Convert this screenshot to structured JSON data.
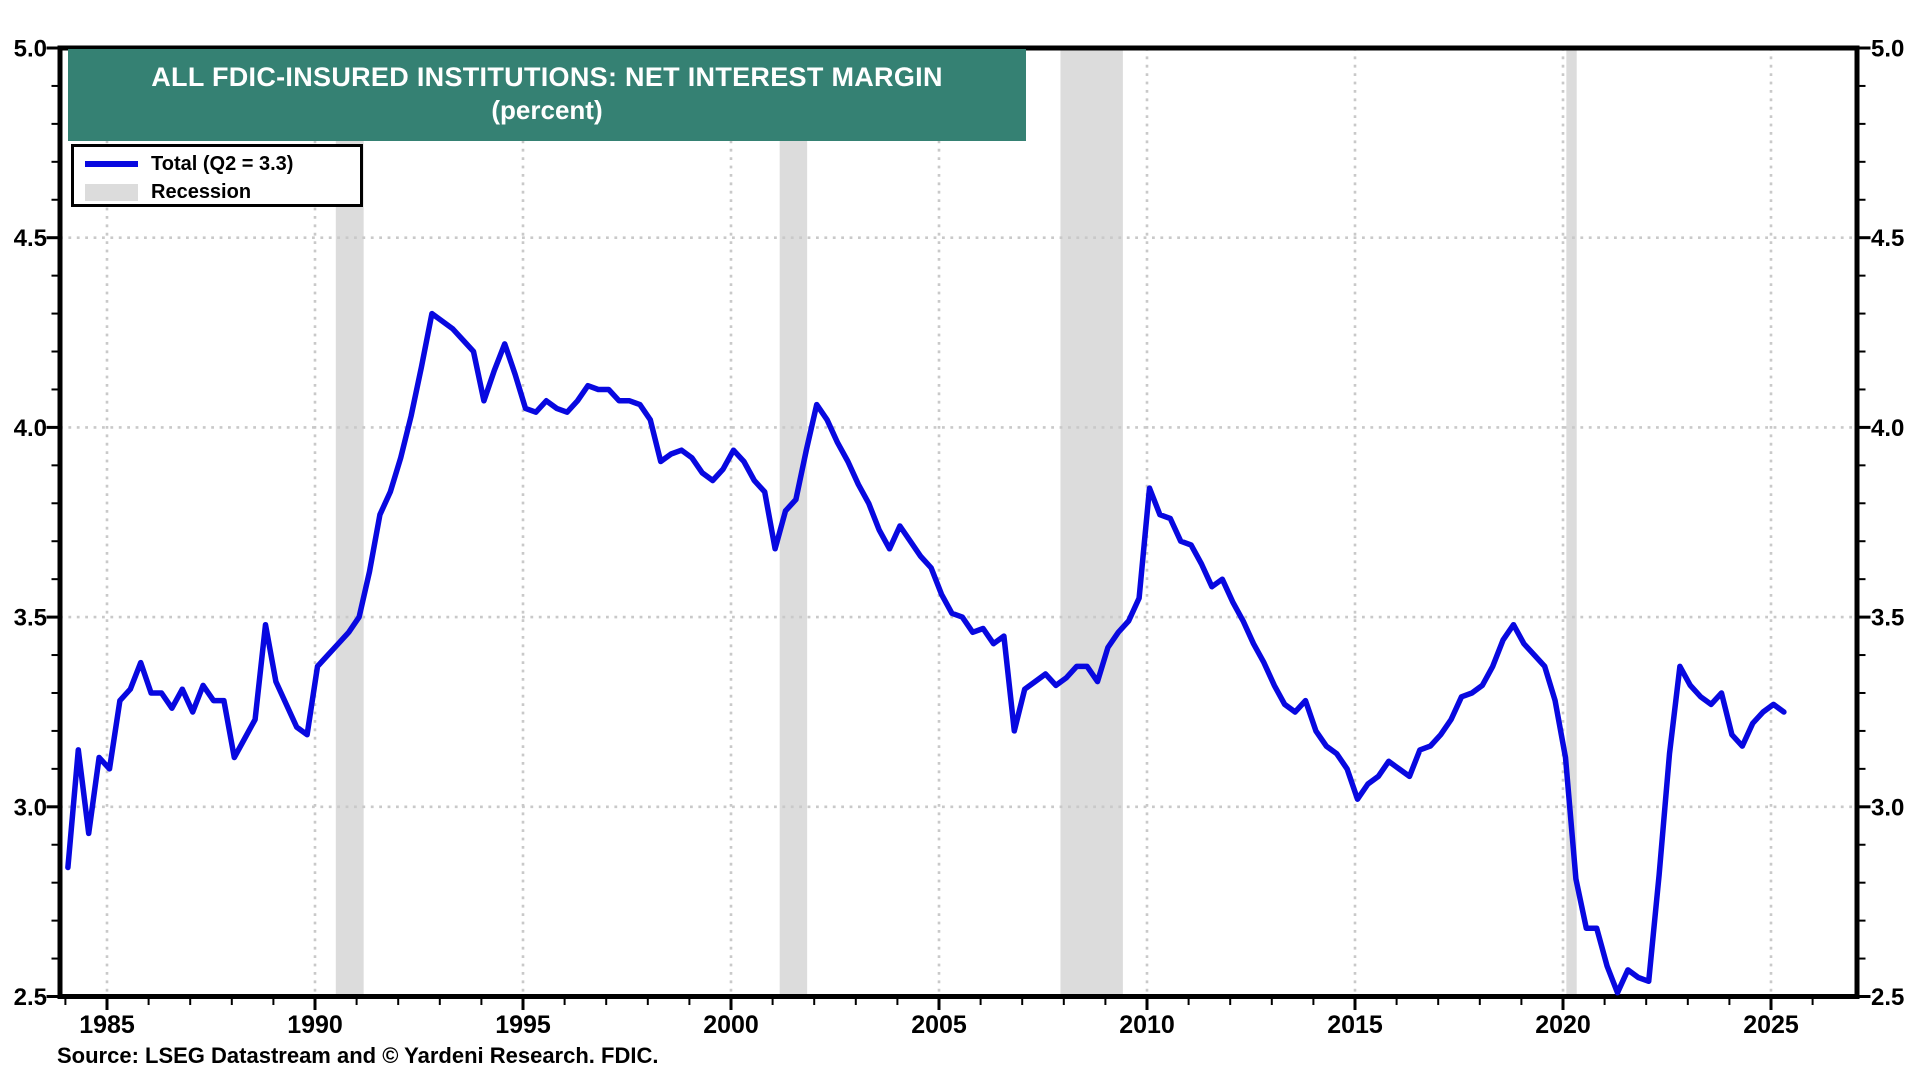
{
  "header": {
    "title_line1": "ALL FDIC-INSURED INSTITUTIONS: NET INTEREST MARGIN",
    "title_line2": "(percent)"
  },
  "legend": {
    "series_label": "Total (Q2 = 3.3)",
    "recession_label": "Recession"
  },
  "footer": {
    "source": "Source: LSEG Datastream and © Yardeni Research. FDIC."
  },
  "colors": {
    "line": "#0808E0",
    "title_bg": "#358173",
    "recession_band": "#DCDCDC",
    "gridline": "#C9C9C9",
    "axis": "#000000"
  },
  "chart_data": {
    "type": "line",
    "title": "ALL FDIC-INSURED INSTITUTIONS: NET INTEREST MARGIN",
    "subtitle": "(percent)",
    "ylabel": "percent",
    "grid": "dotted",
    "legend_position": "top-left",
    "y_axis": {
      "min": 2.5,
      "max": 5.0,
      "major_step": 0.5,
      "minor_step": 0.1,
      "tick_labels": [
        "2.5",
        "3.0",
        "3.5",
        "4.0",
        "4.5",
        "5.0"
      ],
      "gridlines_at": [
        3.0,
        3.5,
        4.0,
        4.5
      ],
      "labels_on_both_sides": true
    },
    "x_axis": {
      "major_tick_years": [
        1985,
        1990,
        1995,
        2000,
        2005,
        2010,
        2015,
        2020,
        2025
      ],
      "minor_tick_step_years": 1,
      "minor_tick_range": [
        1984,
        2026
      ],
      "domain_start": 1983.87,
      "domain_end": 2027.07
    },
    "recession_bands": [
      [
        1990.5,
        1991.17
      ],
      [
        2001.17,
        2001.83
      ],
      [
        2007.92,
        2009.42
      ],
      [
        2020.08,
        2020.33
      ]
    ],
    "series": [
      {
        "name": "Total (Q2 = 3.3)",
        "frequency": "quarterly",
        "start_year": 1984,
        "start_quarter": 1,
        "end_year": 2025,
        "end_quarter": 2,
        "last_value_label": "Q2 = 3.3",
        "values": [
          2.84,
          3.15,
          2.93,
          3.13,
          3.1,
          3.28,
          3.31,
          3.38,
          3.3,
          3.3,
          3.26,
          3.31,
          3.25,
          3.32,
          3.28,
          3.28,
          3.13,
          3.18,
          3.23,
          3.48,
          3.33,
          3.27,
          3.21,
          3.19,
          3.37,
          3.4,
          3.43,
          3.46,
          3.5,
          3.62,
          3.77,
          3.83,
          3.92,
          4.03,
          4.16,
          4.3,
          4.28,
          4.26,
          4.23,
          4.2,
          4.07,
          4.15,
          4.22,
          4.14,
          4.05,
          4.04,
          4.07,
          4.05,
          4.04,
          4.07,
          4.11,
          4.1,
          4.1,
          4.07,
          4.07,
          4.06,
          4.02,
          3.91,
          3.93,
          3.94,
          3.92,
          3.88,
          3.86,
          3.89,
          3.94,
          3.91,
          3.86,
          3.83,
          3.68,
          3.78,
          3.81,
          3.94,
          4.06,
          4.02,
          3.96,
          3.91,
          3.85,
          3.8,
          3.73,
          3.68,
          3.74,
          3.7,
          3.66,
          3.63,
          3.56,
          3.51,
          3.5,
          3.46,
          3.47,
          3.43,
          3.45,
          3.2,
          3.31,
          3.33,
          3.35,
          3.32,
          3.34,
          3.37,
          3.37,
          3.33,
          3.42,
          3.46,
          3.49,
          3.55,
          3.84,
          3.77,
          3.76,
          3.7,
          3.69,
          3.64,
          3.58,
          3.6,
          3.54,
          3.49,
          3.43,
          3.38,
          3.32,
          3.27,
          3.25,
          3.28,
          3.2,
          3.16,
          3.14,
          3.1,
          3.02,
          3.06,
          3.08,
          3.12,
          3.1,
          3.08,
          3.15,
          3.16,
          3.19,
          3.23,
          3.29,
          3.3,
          3.32,
          3.37,
          3.44,
          3.48,
          3.43,
          3.4,
          3.37,
          3.28,
          3.13,
          2.81,
          2.68,
          2.68,
          2.58,
          2.51,
          2.57,
          2.55,
          2.54,
          2.82,
          3.14,
          3.37,
          3.32,
          3.29,
          3.27,
          3.3,
          3.19,
          3.16,
          3.22,
          3.25,
          3.27,
          3.25
        ]
      }
    ]
  }
}
